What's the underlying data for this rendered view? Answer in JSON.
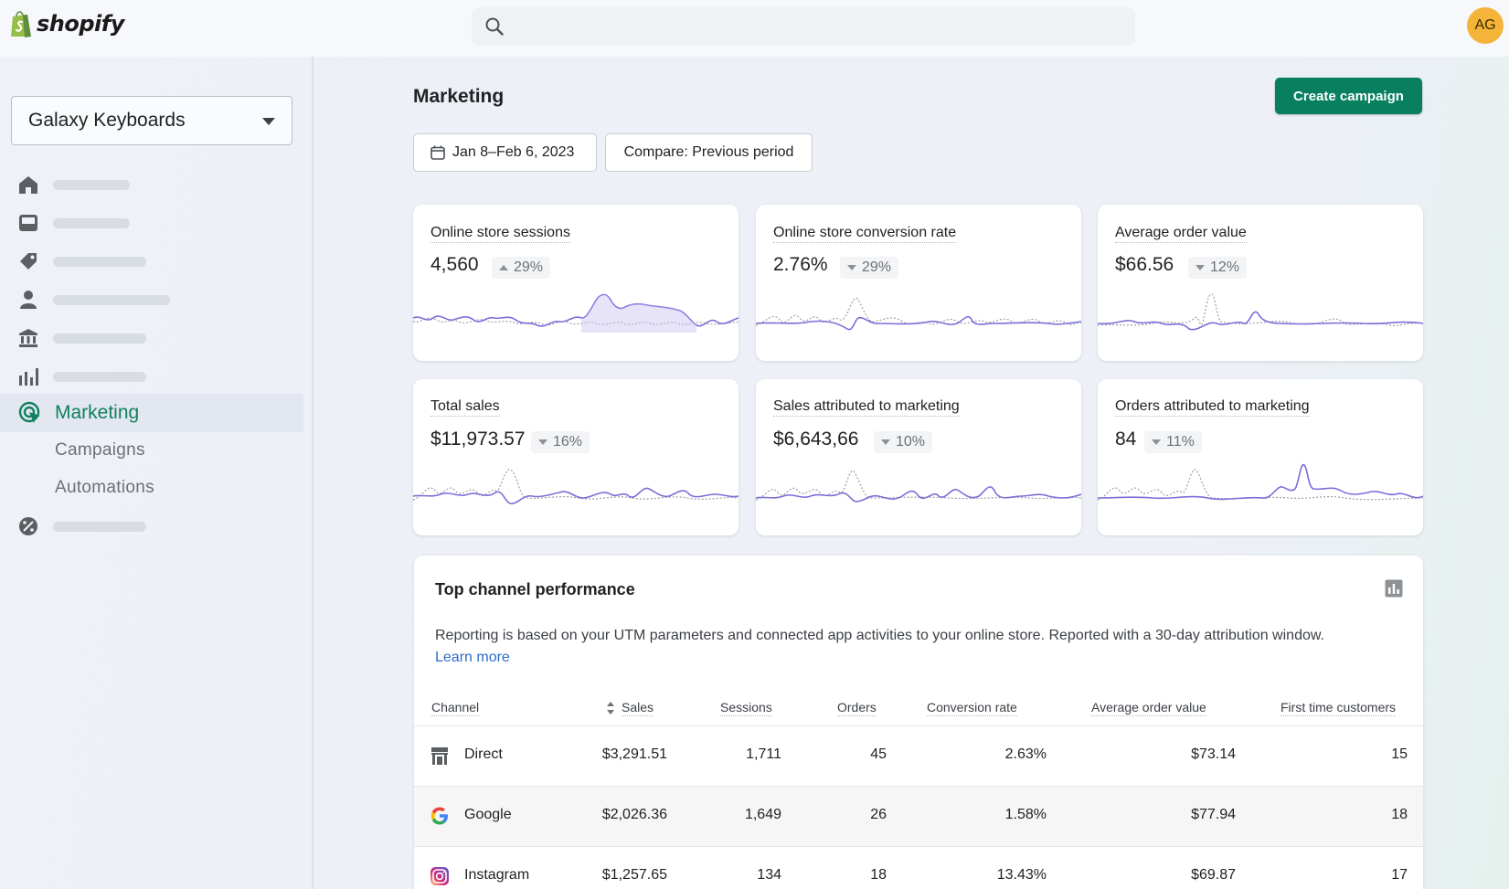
{
  "brand": {
    "name": "shopify",
    "accent": "#087f5e",
    "logo_green": "#95bf47"
  },
  "topbar": {
    "avatar_initials": "AG"
  },
  "sidebar": {
    "store_name": "Galaxy Keyboards",
    "icons": [
      "home-icon",
      "inbox-icon",
      "tag-icon",
      "person-icon",
      "bank-icon",
      "bar-chart-icon",
      "discount-icon"
    ],
    "active_label": "Marketing",
    "sub_items": [
      "Campaigns",
      "Automations"
    ]
  },
  "page": {
    "title": "Marketing",
    "create_button": "Create campaign",
    "date_range": "Jan 8–Feb 6, 2023",
    "compare": "Compare: Previous period"
  },
  "metrics": [
    {
      "title": "Online store sessions",
      "value": "4,560",
      "change": "29%",
      "direction": "up"
    },
    {
      "title": "Online store conversion rate",
      "value": "2.76%",
      "change": "29%",
      "direction": "down"
    },
    {
      "title": "Average order value",
      "value": "$66.56",
      "change": "12%",
      "direction": "down"
    },
    {
      "title": "Total sales",
      "value": "$11,973.57",
      "change": "16%",
      "direction": "down"
    },
    {
      "title": "Sales attributed to marketing",
      "value": "$6,643,66",
      "change": "10%",
      "direction": "down"
    },
    {
      "title": "Orders attributed to marketing",
      "value": "84",
      "change": "11%",
      "direction": "down"
    }
  ],
  "channel_panel": {
    "title": "Top channel performance",
    "description": "Reporting is based on your UTM parameters and connected app activities to your online store. Reported with a 30-day attribution window.",
    "learn_more": "Learn more",
    "columns": [
      "Channel",
      "Sales",
      "Sessions",
      "Orders",
      "Conversion rate",
      "Average order value",
      "First time customers"
    ],
    "rows": [
      {
        "channel": "Direct",
        "icon": "store-icon",
        "sales": "$3,291.51",
        "sessions": "1,711",
        "orders": "45",
        "conversion": "2.63%",
        "aov": "$73.14",
        "first_time": "15"
      },
      {
        "channel": "Google",
        "icon": "google-icon",
        "sales": "$2,026.36",
        "sessions": "1,649",
        "orders": "26",
        "conversion": "1.58%",
        "aov": "$77.94",
        "first_time": "18"
      },
      {
        "channel": "Instagram",
        "icon": "instagram-icon",
        "sales": "$1,257.65",
        "sessions": "134",
        "orders": "18",
        "conversion": "13.43%",
        "aov": "$69.87",
        "first_time": "17"
      }
    ]
  }
}
